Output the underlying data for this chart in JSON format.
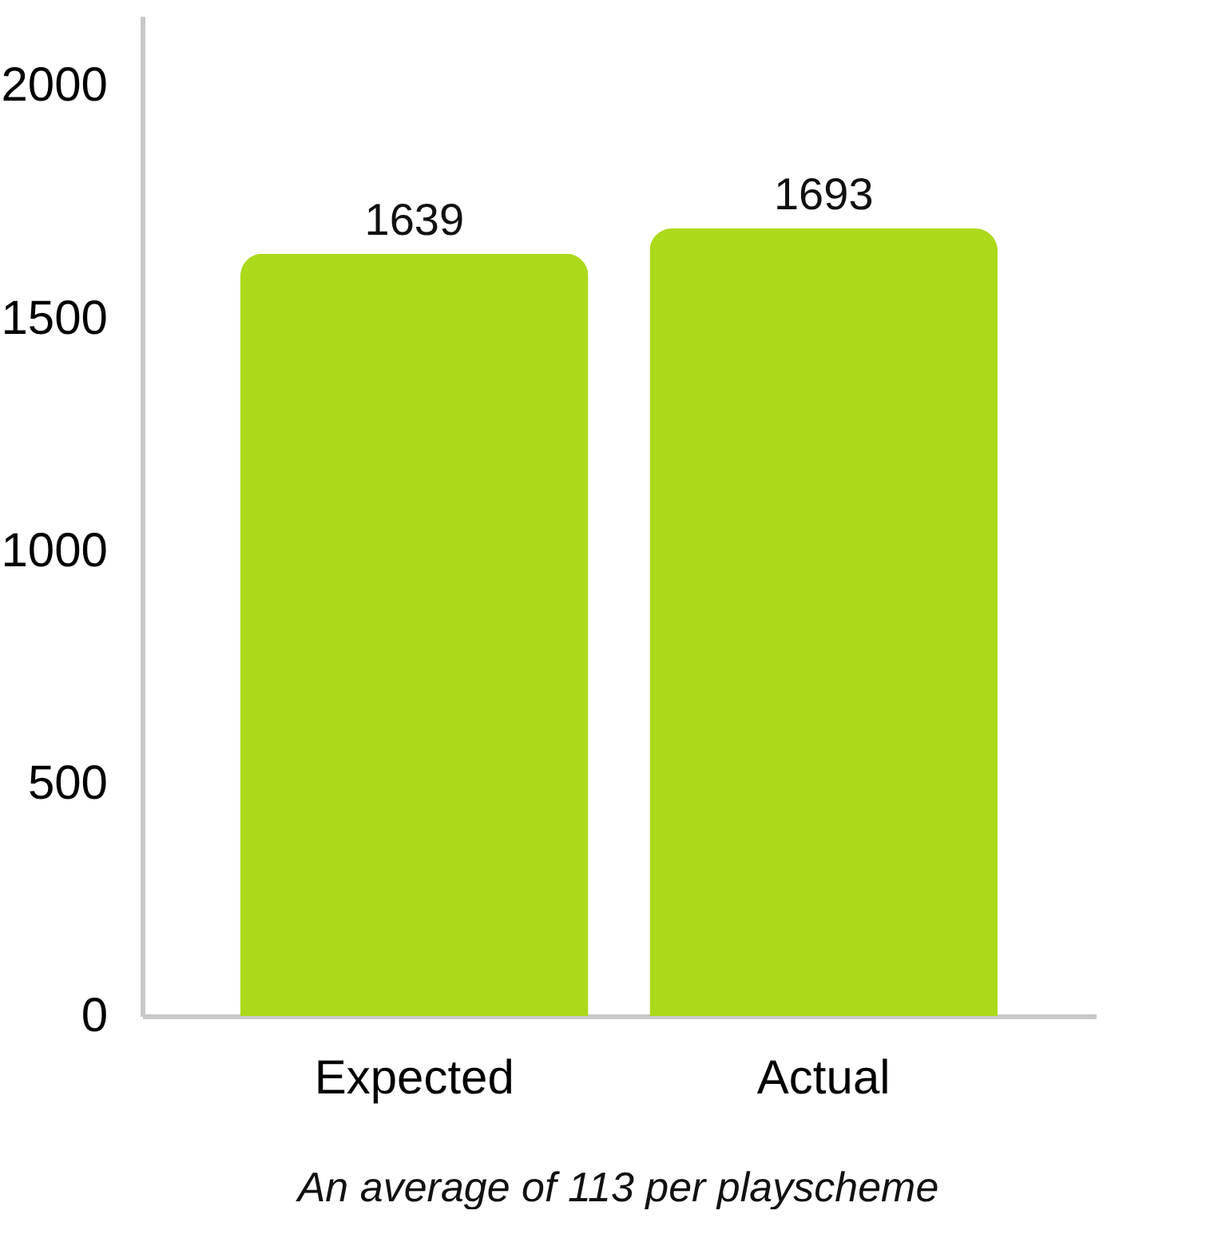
{
  "chart_data": {
    "type": "bar",
    "categories": [
      "Expected",
      "Actual"
    ],
    "values": [
      1639,
      1693
    ],
    "color": "#acd91a",
    "ylim": [
      0,
      2150
    ],
    "yticks": [
      0,
      500,
      1000,
      1500,
      2000
    ],
    "data_labels": true,
    "grid": false,
    "xlabel": "An average of 113 per playscheme"
  }
}
